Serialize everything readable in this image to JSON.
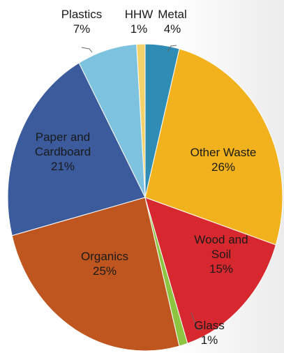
{
  "chart_data": {
    "type": "pie",
    "categories": [
      "Metal",
      "Other Waste",
      "Wood and Soil",
      "Glass",
      "Organics",
      "Paper and Cardboard",
      "Plastics",
      "HHW"
    ],
    "values": [
      4,
      26,
      15,
      1,
      25,
      21,
      7,
      1
    ],
    "value_labels": [
      "4%",
      "26%",
      "15%",
      "1%",
      "25%",
      "21%",
      "7%",
      "1%"
    ],
    "colors": [
      "#2f8cb5",
      "#f2b21e",
      "#d8282f",
      "#8dc442",
      "#bf5620",
      "#3b5b9d",
      "#7dc2de",
      "#f3d26a"
    ]
  }
}
